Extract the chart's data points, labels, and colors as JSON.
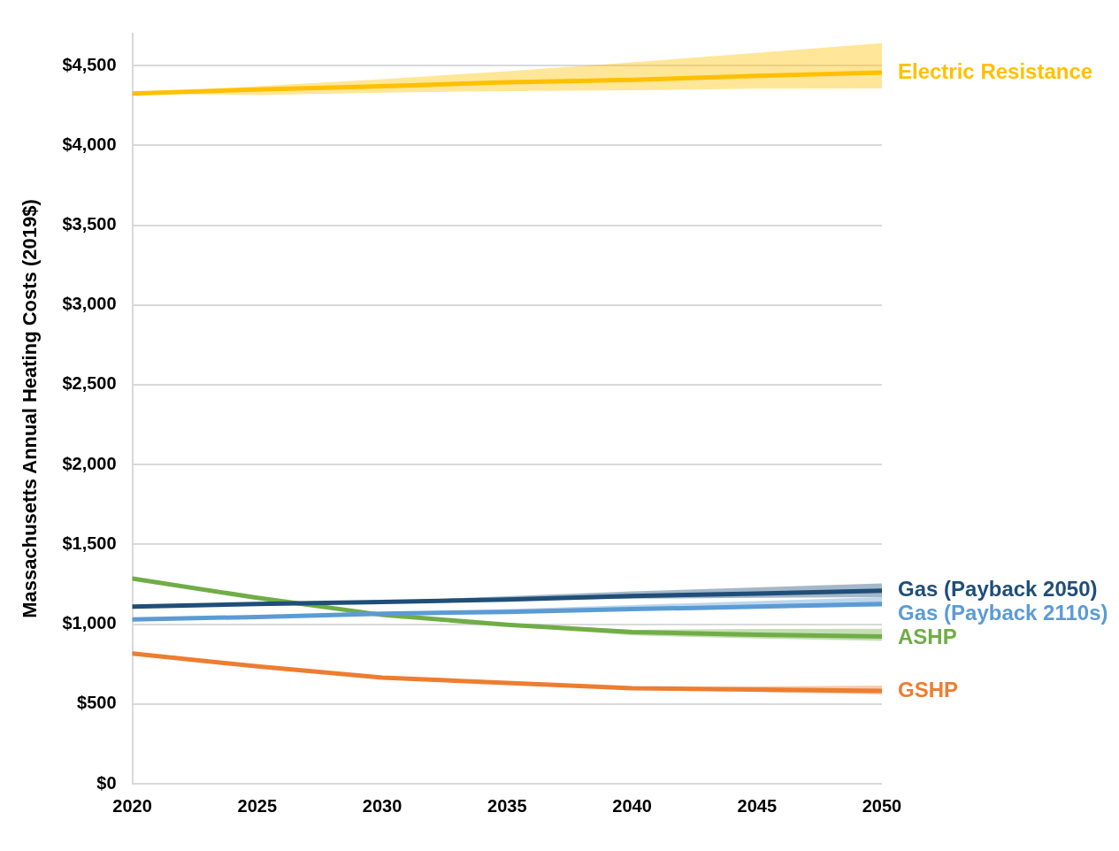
{
  "chart_data": {
    "type": "line",
    "ylabel": "Massachusetts Annual Heating Costs (2019$)",
    "x": [
      2020,
      2025,
      2030,
      2035,
      2040,
      2045,
      2050
    ],
    "xlim": [
      2020,
      2050
    ],
    "xticks": [
      2020,
      2025,
      2030,
      2035,
      2040,
      2045,
      2050
    ],
    "ylim": [
      0,
      4700
    ],
    "yticks": [
      {
        "value": 0,
        "label": "$0"
      },
      {
        "value": 500,
        "label": "$500"
      },
      {
        "value": 1000,
        "label": "$1,000"
      },
      {
        "value": 1500,
        "label": "$1,500"
      },
      {
        "value": 2000,
        "label": "$2,000"
      },
      {
        "value": 2500,
        "label": "$2,500"
      },
      {
        "value": 3000,
        "label": "$3,000"
      },
      {
        "value": 3500,
        "label": "$3,500"
      },
      {
        "value": 4000,
        "label": "$4,000"
      },
      {
        "value": 4500,
        "label": "$4,500"
      }
    ],
    "grid": "y",
    "legend": false,
    "marker": "none",
    "line_style": "solid",
    "series": [
      {
        "name": "Electric Resistance",
        "color": "#ffc000",
        "values": [
          4325,
          4350,
          4370,
          4395,
          4410,
          4435,
          4456
        ],
        "lower": [
          4325,
          4315,
          4330,
          4340,
          4345,
          4355,
          4357
        ],
        "upper": [
          4325,
          4370,
          4415,
          4465,
          4520,
          4580,
          4640
        ]
      },
      {
        "name": "Gas (Payback 2050)",
        "color": "#1f4e79",
        "values": [
          1110,
          1126,
          1139,
          1154,
          1176,
          1192,
          1209
        ],
        "lower": [
          1110,
          1126,
          1139,
          1150,
          1160,
          1165,
          1170
        ],
        "upper": [
          1110,
          1126,
          1145,
          1175,
          1205,
          1230,
          1255
        ]
      },
      {
        "name": "Gas (Payback 2110s)",
        "color": "#5b9bd5",
        "values": [
          1030,
          1045,
          1066,
          1077,
          1094,
          1110,
          1126
        ],
        "lower": [
          1030,
          1045,
          1066,
          1077,
          1090,
          1100,
          1110
        ],
        "upper": [
          1030,
          1045,
          1070,
          1095,
          1120,
          1145,
          1170
        ]
      },
      {
        "name": "ASHP",
        "color": "#70ad47",
        "values": [
          1286,
          1165,
          1058,
          996,
          950,
          934,
          923
        ],
        "lower": [
          1286,
          1165,
          1058,
          990,
          930,
          910,
          895
        ],
        "upper": [
          1286,
          1165,
          1058,
          1005,
          965,
          970,
          972
        ]
      },
      {
        "name": "GSHP",
        "color": "#ed7d31",
        "values": [
          816,
          736,
          665,
          632,
          599,
          590,
          582
        ],
        "lower": [
          816,
          736,
          665,
          632,
          590,
          575,
          560
        ],
        "upper": [
          816,
          736,
          665,
          632,
          605,
          610,
          615
        ]
      }
    ]
  }
}
